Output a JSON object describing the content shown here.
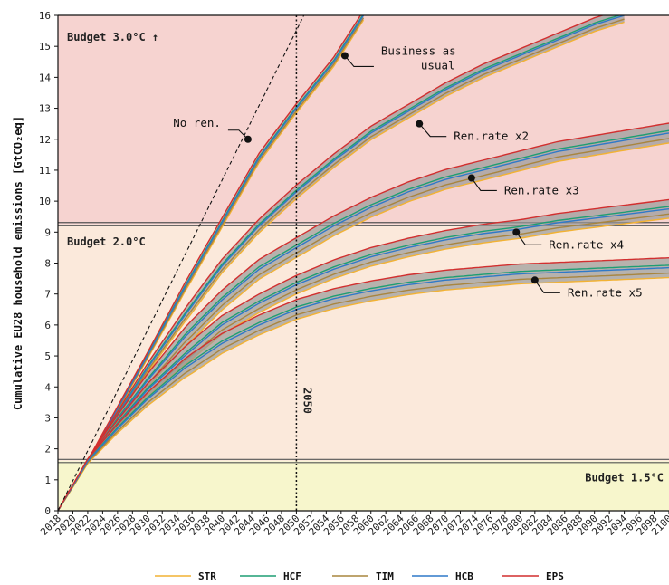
{
  "chart_data": {
    "type": "line",
    "ylabel": "Cumulative EU28 household emissions [GtCO₂eq]",
    "ylim": [
      0,
      16
    ],
    "xlim": [
      2018,
      2100
    ],
    "y_ticks": [
      0,
      1,
      2,
      3,
      4,
      5,
      6,
      7,
      8,
      9,
      10,
      11,
      12,
      13,
      14,
      15,
      16
    ],
    "x_ticks": [
      2018,
      2020,
      2022,
      2024,
      2026,
      2028,
      2030,
      2032,
      2034,
      2036,
      2038,
      2040,
      2042,
      2044,
      2046,
      2048,
      2050,
      2052,
      2054,
      2056,
      2058,
      2060,
      2062,
      2064,
      2066,
      2068,
      2070,
      2072,
      2074,
      2076,
      2078,
      2080,
      2082,
      2084,
      2086,
      2088,
      2090,
      2092,
      2094,
      2096,
      2098,
      2100
    ],
    "x_tick_labels": [
      "2018",
      "2020",
      "2022",
      "2024",
      "2026",
      "2028",
      "2030",
      "2032",
      "2034",
      "2036",
      "2038",
      "2040",
      "2042",
      "2044",
      "2046",
      "2048",
      "2050",
      "2052",
      "2054",
      "2056",
      "2058",
      "2060",
      "2062",
      "2064",
      "2066",
      "2068",
      "2070",
      "2072",
      "2074",
      "2076",
      "2078",
      "2080",
      "2082",
      "2084",
      "2086",
      "2088",
      "2090",
      "2092",
      "2094",
      "2096",
      "2098",
      "2100"
    ],
    "grid": false,
    "budgets": [
      {
        "label": "Budget 3.0°C ↑",
        "value": null,
        "color": "#f6d3d0"
      },
      {
        "label": "Budget 2.0°C",
        "value": 9.25,
        "color": "#fbe9db"
      },
      {
        "label": "Budget 1.5°C",
        "value": 1.6,
        "color": "#f7f6cc"
      }
    ],
    "vline": {
      "x": 2050,
      "label": "2050"
    },
    "no_ren": {
      "label": "No ren.",
      "x": [
        2018,
        2051
      ],
      "y": [
        0,
        16
      ],
      "marker": {
        "x": 2043.5,
        "y": 12.0
      }
    },
    "scenarios": [
      {
        "name": "Business as usual",
        "center": [
          [
            2018,
            0
          ],
          [
            2022,
            1.6
          ],
          [
            2026,
            3.3
          ],
          [
            2030,
            5.0
          ],
          [
            2035,
            7.2
          ],
          [
            2040,
            9.3
          ],
          [
            2045,
            11.4
          ],
          [
            2050,
            13.0
          ],
          [
            2055,
            14.5
          ],
          [
            2059,
            16.0
          ]
        ],
        "spread": 0.15,
        "marker": {
          "x": 2056.5,
          "y": 14.7
        }
      },
      {
        "name": "Ren.rate x2",
        "center": [
          [
            2018,
            0
          ],
          [
            2022,
            1.6
          ],
          [
            2026,
            3.1
          ],
          [
            2030,
            4.6
          ],
          [
            2035,
            6.3
          ],
          [
            2040,
            7.9
          ],
          [
            2045,
            9.2
          ],
          [
            2050,
            10.3
          ],
          [
            2055,
            11.3
          ],
          [
            2060,
            12.2
          ],
          [
            2065,
            12.9
          ],
          [
            2070,
            13.6
          ],
          [
            2075,
            14.2
          ],
          [
            2080,
            14.7
          ],
          [
            2085,
            15.2
          ],
          [
            2090,
            15.7
          ],
          [
            2094,
            16.0
          ]
        ],
        "spread": 0.22,
        "marker": {
          "x": 2066.5,
          "y": 12.5
        }
      },
      {
        "name": "Ren.rate x3",
        "center": [
          [
            2018,
            0
          ],
          [
            2022,
            1.6
          ],
          [
            2026,
            2.95
          ],
          [
            2030,
            4.2
          ],
          [
            2035,
            5.6
          ],
          [
            2040,
            6.8
          ],
          [
            2045,
            7.8
          ],
          [
            2050,
            8.5
          ],
          [
            2055,
            9.2
          ],
          [
            2060,
            9.8
          ],
          [
            2065,
            10.3
          ],
          [
            2070,
            10.7
          ],
          [
            2075,
            11.0
          ],
          [
            2080,
            11.3
          ],
          [
            2085,
            11.6
          ],
          [
            2090,
            11.8
          ],
          [
            2095,
            12.0
          ],
          [
            2100,
            12.2
          ]
        ],
        "spread": 0.32,
        "marker": {
          "x": 2073.5,
          "y": 10.75
        }
      },
      {
        "name": "Ren.rate x4",
        "center": [
          [
            2018,
            0
          ],
          [
            2022,
            1.6
          ],
          [
            2026,
            2.8
          ],
          [
            2030,
            3.9
          ],
          [
            2035,
            5.0
          ],
          [
            2040,
            6.0
          ],
          [
            2045,
            6.7
          ],
          [
            2050,
            7.3
          ],
          [
            2055,
            7.8
          ],
          [
            2060,
            8.2
          ],
          [
            2065,
            8.5
          ],
          [
            2070,
            8.75
          ],
          [
            2075,
            8.95
          ],
          [
            2080,
            9.1
          ],
          [
            2085,
            9.3
          ],
          [
            2090,
            9.45
          ],
          [
            2095,
            9.6
          ],
          [
            2100,
            9.75
          ]
        ],
        "spread": 0.3,
        "marker": {
          "x": 2079.5,
          "y": 9.0
        }
      },
      {
        "name": "Ren.rate x5",
        "center": [
          [
            2018,
            0
          ],
          [
            2022,
            1.6
          ],
          [
            2026,
            2.65
          ],
          [
            2030,
            3.6
          ],
          [
            2035,
            4.6
          ],
          [
            2040,
            5.4
          ],
          [
            2045,
            6.0
          ],
          [
            2050,
            6.5
          ],
          [
            2055,
            6.85
          ],
          [
            2060,
            7.1
          ],
          [
            2065,
            7.3
          ],
          [
            2070,
            7.45
          ],
          [
            2075,
            7.55
          ],
          [
            2080,
            7.65
          ],
          [
            2085,
            7.7
          ],
          [
            2090,
            7.75
          ],
          [
            2095,
            7.8
          ],
          [
            2100,
            7.85
          ]
        ],
        "spread": 0.32,
        "marker": {
          "x": 2082,
          "y": 7.45
        }
      }
    ],
    "legend": {
      "placement": "bottom",
      "entries": [
        {
          "name": "STR",
          "color": "#f2b233"
        },
        {
          "name": "HCF",
          "color": "#1e9e73"
        },
        {
          "name": "TIM",
          "color": "#a8853f"
        },
        {
          "name": "HCB",
          "color": "#2f79c8"
        },
        {
          "name": "EPS",
          "color": "#d22f2f"
        }
      ]
    },
    "band_color": "#9a9a9a"
  }
}
